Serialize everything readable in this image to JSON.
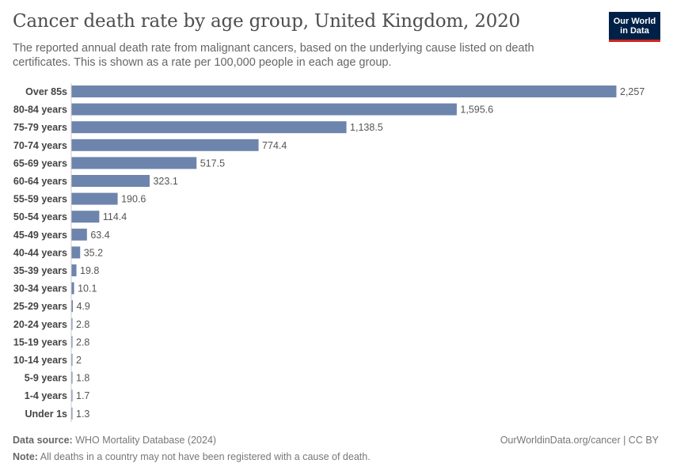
{
  "header": {
    "title": "Cancer death rate by age group, United Kingdom, 2020",
    "subtitle": "The reported annual death rate from malignant cancers, based on the underlying cause listed on death certificates. This is shown as a rate per 100,000 people in each age group.",
    "logo_line1": "Our World",
    "logo_line2": "in Data"
  },
  "footer": {
    "source_label": "Data source:",
    "source_text": "WHO Mortality Database (2024)",
    "url_text": "OurWorldinData.org/cancer | CC BY",
    "note_label": "Note:",
    "note_text": "All deaths in a country may not have been registered with a cause of death."
  },
  "colors": {
    "bar": "#6d84ad",
    "logo_bg": "#002147",
    "logo_accent": "#ce261e"
  },
  "chart_data": {
    "type": "bar",
    "orientation": "horizontal",
    "categories": [
      "Over 85s",
      "80-84 years",
      "75-79 years",
      "70-74 years",
      "65-69 years",
      "60-64 years",
      "55-59 years",
      "50-54 years",
      "45-49 years",
      "40-44 years",
      "35-39 years",
      "30-34 years",
      "25-29 years",
      "20-24 years",
      "15-19 years",
      "10-14 years",
      "5-9 years",
      "1-4 years",
      "Under 1s"
    ],
    "values": [
      2257,
      1595.6,
      1138.5,
      774.4,
      517.5,
      323.1,
      190.6,
      114.4,
      63.4,
      35.2,
      19.8,
      10.1,
      4.9,
      2.8,
      2.8,
      2,
      1.8,
      1.7,
      1.3
    ],
    "value_labels": [
      "2,257",
      "1,595.6",
      "1,138.5",
      "774.4",
      "517.5",
      "323.1",
      "190.6",
      "114.4",
      "63.4",
      "35.2",
      "19.8",
      "10.1",
      "4.9",
      "2.8",
      "2.8",
      "2",
      "1.8",
      "1.7",
      "1.3"
    ],
    "xlim": [
      0,
      2257
    ],
    "grid": false
  }
}
